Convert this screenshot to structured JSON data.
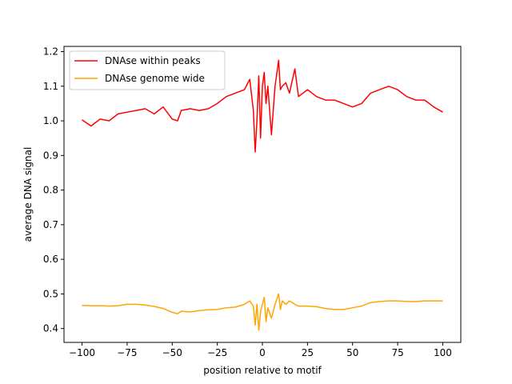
{
  "chart_data": {
    "type": "line",
    "title": "",
    "xlabel": "position relative to motif",
    "ylabel": "average DNA signal",
    "xlim": [
      -110,
      110
    ],
    "ylim": [
      0.36,
      1.215
    ],
    "xticks": [
      -100,
      -75,
      -50,
      -25,
      0,
      25,
      50,
      75,
      100
    ],
    "xtick_labels": [
      "−100",
      "−75",
      "−50",
      "−25",
      "0",
      "25",
      "50",
      "75",
      "100"
    ],
    "yticks": [
      0.4,
      0.5,
      0.6,
      0.7,
      0.8,
      0.9,
      1.0,
      1.1,
      1.2
    ],
    "ytick_labels": [
      "0.4",
      "0.5",
      "0.6",
      "0.7",
      "0.8",
      "0.9",
      "1.0",
      "1.1",
      "1.2"
    ],
    "grid": false,
    "legend_position": "top-left",
    "series": [
      {
        "name": "DNAse within peaks",
        "color": "#ff0000",
        "x": [
          -100,
          -95,
          -90,
          -85,
          -80,
          -75,
          -70,
          -65,
          -60,
          -55,
          -50,
          -47,
          -45,
          -40,
          -35,
          -30,
          -25,
          -20,
          -15,
          -10,
          -7,
          -5,
          -4,
          -3,
          -2,
          -1,
          0,
          1,
          2,
          3,
          5,
          7,
          9,
          10,
          11,
          13,
          15,
          18,
          20,
          25,
          30,
          35,
          40,
          45,
          50,
          55,
          60,
          65,
          70,
          75,
          80,
          85,
          90,
          95,
          100
        ],
        "values": [
          1.003,
          0.985,
          1.005,
          1.0,
          1.02,
          1.025,
          1.03,
          1.035,
          1.02,
          1.04,
          1.005,
          1.0,
          1.03,
          1.035,
          1.03,
          1.035,
          1.05,
          1.07,
          1.08,
          1.09,
          1.12,
          1.03,
          0.91,
          1.0,
          1.13,
          0.95,
          1.1,
          1.14,
          1.05,
          1.1,
          0.96,
          1.1,
          1.175,
          1.09,
          1.1,
          1.11,
          1.08,
          1.15,
          1.07,
          1.09,
          1.07,
          1.06,
          1.06,
          1.05,
          1.04,
          1.05,
          1.08,
          1.09,
          1.1,
          1.09,
          1.07,
          1.06,
          1.06,
          1.04,
          1.025
        ]
      },
      {
        "name": "DNAse genome wide",
        "color": "#ffa500",
        "x": [
          -100,
          -95,
          -90,
          -85,
          -80,
          -75,
          -70,
          -65,
          -60,
          -55,
          -50,
          -47,
          -45,
          -40,
          -35,
          -30,
          -25,
          -20,
          -15,
          -10,
          -7,
          -5,
          -4,
          -3,
          -2,
          -1,
          0,
          1,
          2,
          3,
          5,
          7,
          9,
          10,
          11,
          13,
          15,
          18,
          20,
          25,
          30,
          35,
          40,
          45,
          50,
          55,
          60,
          65,
          70,
          75,
          80,
          85,
          90,
          95,
          100
        ],
        "values": [
          0.467,
          0.466,
          0.466,
          0.465,
          0.466,
          0.47,
          0.47,
          0.468,
          0.464,
          0.458,
          0.447,
          0.443,
          0.45,
          0.448,
          0.452,
          0.454,
          0.455,
          0.46,
          0.462,
          0.47,
          0.48,
          0.465,
          0.41,
          0.47,
          0.395,
          0.45,
          0.47,
          0.49,
          0.42,
          0.46,
          0.43,
          0.47,
          0.5,
          0.455,
          0.48,
          0.47,
          0.48,
          0.47,
          0.465,
          0.465,
          0.463,
          0.458,
          0.455,
          0.455,
          0.46,
          0.465,
          0.475,
          0.478,
          0.48,
          0.48,
          0.478,
          0.478,
          0.48,
          0.48,
          0.48
        ]
      }
    ]
  }
}
